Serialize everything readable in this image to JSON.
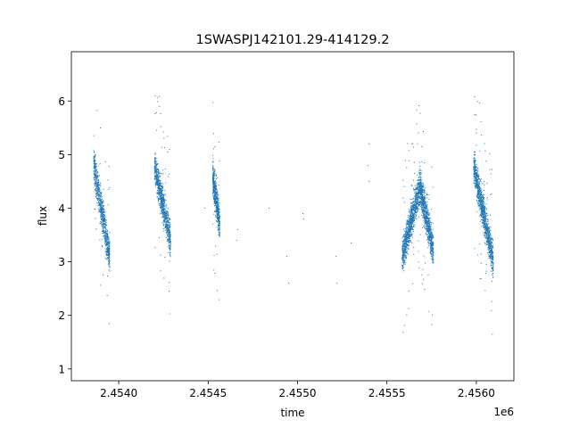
{
  "chart_data": {
    "type": "scatter",
    "title": "1SWASPJ142101.29-414129.2",
    "xlabel": "time",
    "ylabel": "flux",
    "x_offset_label": "1e6",
    "xlim": [
      2453735,
      2456210
    ],
    "ylim": [
      0.78,
      6.92
    ],
    "xticks": [
      2454000,
      2454500,
      2455000,
      2455500,
      2456000
    ],
    "xtick_labels": [
      "2.4540",
      "2.4545",
      "2.4550",
      "2.4555",
      "2.4560"
    ],
    "yticks": [
      1,
      2,
      3,
      4,
      5,
      6
    ],
    "ytick_labels": [
      "1",
      "2",
      "3",
      "4",
      "5",
      "6"
    ],
    "grid": false,
    "point_color": "#1f77b4",
    "clusters": [
      {
        "x_start": 2453860,
        "x_end": 2453950,
        "flux_start": 4.8,
        "flux_end": 3.1,
        "spread": 0.35,
        "n": 900
      },
      {
        "x_start": 2454200,
        "x_end": 2454290,
        "flux_start": 4.8,
        "flux_end": 3.4,
        "spread": 0.35,
        "n": 900
      },
      {
        "x_start": 2454525,
        "x_end": 2454565,
        "flux_start": 4.6,
        "flux_end": 3.7,
        "spread": 0.35,
        "n": 600
      },
      {
        "x_start": 2455585,
        "x_end": 2455685,
        "flux_start": 3.1,
        "flux_end": 4.4,
        "spread": 0.35,
        "n": 1100
      },
      {
        "x_start": 2455685,
        "x_end": 2455760,
        "flux_start": 4.4,
        "flux_end": 3.2,
        "spread": 0.35,
        "n": 900
      },
      {
        "x_start": 2455985,
        "x_end": 2456095,
        "flux_start": 4.8,
        "flux_end": 3.0,
        "spread": 0.35,
        "n": 1200
      }
    ],
    "sparse_points": [
      [
        2454480,
        4.0
      ],
      [
        2454660,
        3.4
      ],
      [
        2454665,
        3.6
      ],
      [
        2454840,
        4.0
      ],
      [
        2454940,
        3.1
      ],
      [
        2454950,
        2.6
      ],
      [
        2455030,
        3.9
      ],
      [
        2455035,
        3.8
      ],
      [
        2455215,
        3.1
      ],
      [
        2455220,
        2.6
      ],
      [
        2455300,
        3.35
      ],
      [
        2455395,
        4.8
      ],
      [
        2455400,
        4.5
      ],
      [
        2455400,
        5.2
      ]
    ]
  }
}
